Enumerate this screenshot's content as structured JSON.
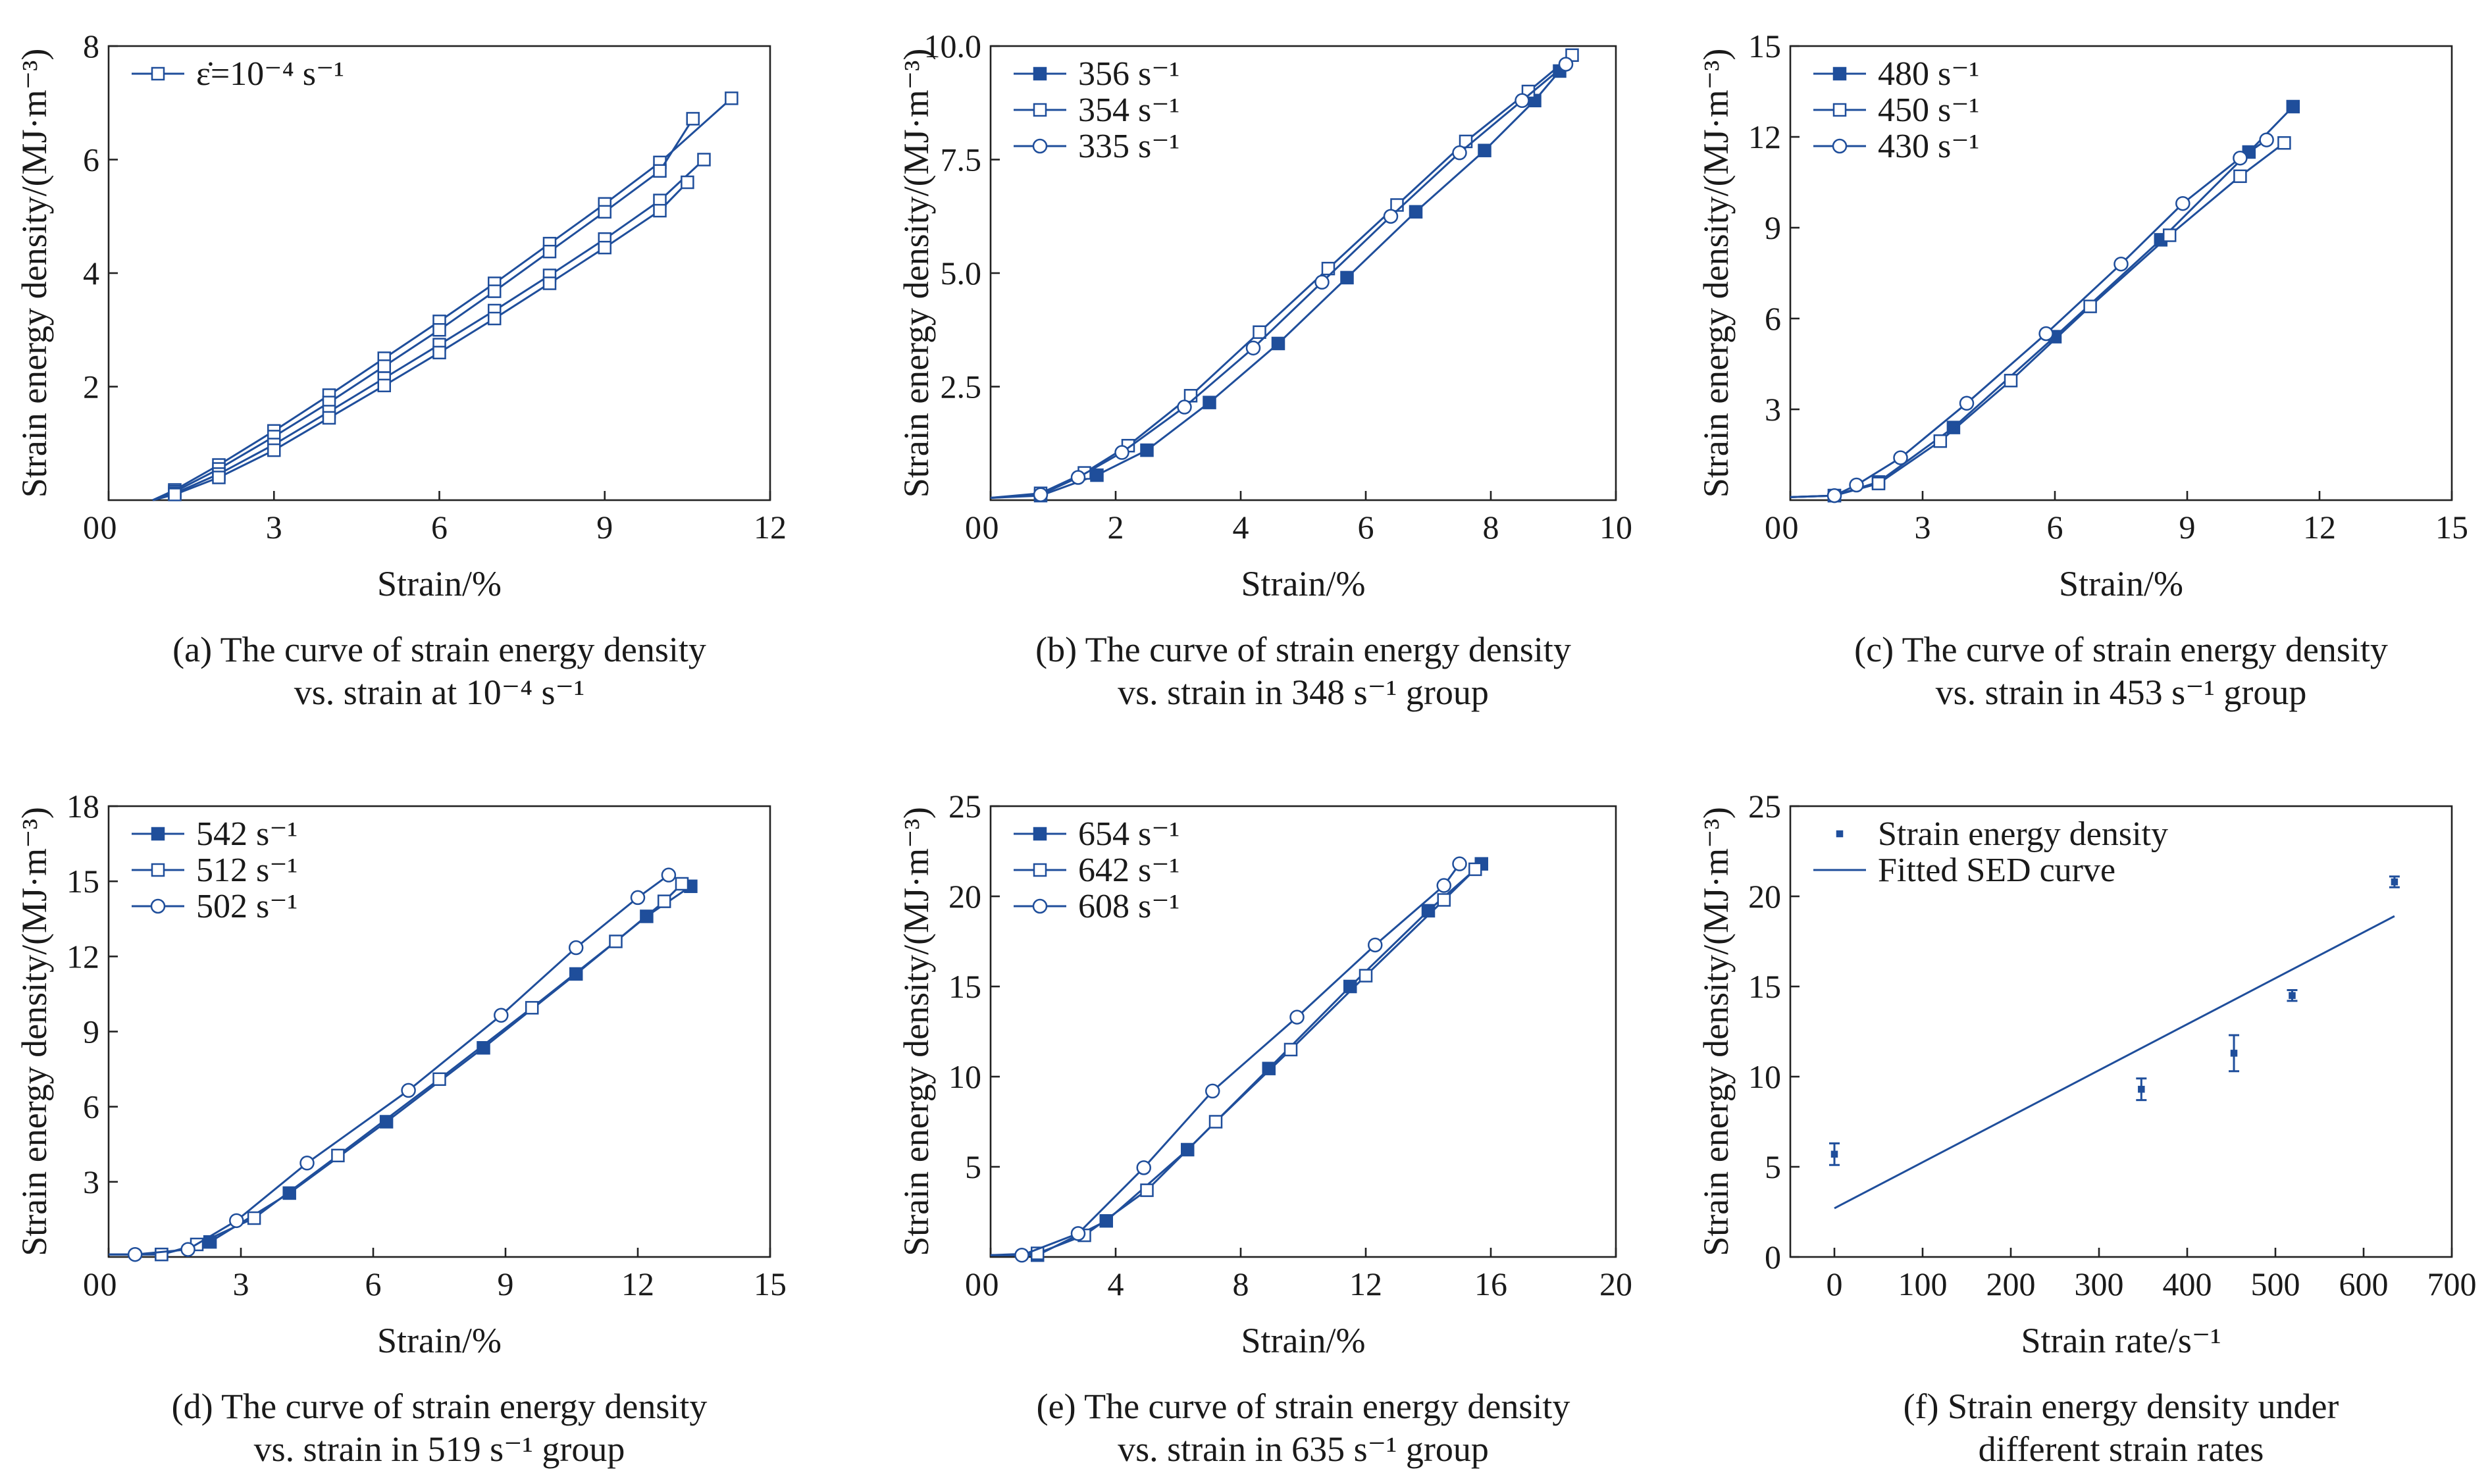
{
  "figure": {
    "background": "#ffffff",
    "series_color": "#1f4e9b"
  },
  "chart_data": [
    {
      "id": "a",
      "type": "line",
      "caption_line1": "(a) The curve of strain energy density",
      "caption_line2": "vs. strain at 10⁻⁴ s⁻¹",
      "xlabel": "Strain/%",
      "ylabel": "Strain energy density/(MJ·m⁻³)",
      "xlim": [
        0,
        12
      ],
      "ylim": [
        0,
        8
      ],
      "xticks": [
        0,
        3,
        6,
        9,
        12
      ],
      "yticks": [
        2,
        4,
        6,
        8
      ],
      "ytick_labels": [
        "2",
        "4",
        "6",
        "8"
      ],
      "legend_position": "top-left",
      "legend": [
        {
          "label": "ε̇=10⁻⁴ s⁻¹",
          "marker": "square"
        }
      ],
      "series": [
        {
          "marker": "square",
          "x": [
            0.8,
            1.2,
            2.0,
            3.0,
            4.0,
            5.0,
            6.0,
            7.0,
            8.0,
            9.0,
            10.0,
            11.3
          ],
          "y": [
            0.0,
            0.18,
            0.62,
            1.22,
            1.85,
            2.5,
            3.15,
            3.82,
            4.52,
            5.22,
            5.95,
            7.08
          ]
        },
        {
          "marker": "square",
          "x": [
            0.8,
            1.2,
            2.0,
            3.0,
            4.0,
            5.0,
            6.0,
            7.0,
            8.0,
            9.0,
            10.0,
            10.6
          ],
          "y": [
            0.0,
            0.15,
            0.55,
            1.12,
            1.72,
            2.36,
            3.0,
            3.68,
            4.38,
            5.08,
            5.8,
            6.72
          ]
        },
        {
          "marker": "square",
          "x": [
            0.8,
            1.2,
            2.0,
            3.0,
            4.0,
            5.0,
            6.0,
            7.0,
            8.0,
            9.0,
            10.0,
            10.8
          ],
          "y": [
            0.0,
            0.12,
            0.46,
            0.98,
            1.56,
            2.15,
            2.74,
            3.34,
            3.96,
            4.6,
            5.28,
            6.0
          ]
        },
        {
          "marker": "square",
          "x": [
            0.8,
            1.2,
            2.0,
            3.0,
            4.0,
            5.0,
            6.0,
            7.0,
            8.0,
            9.0,
            10.0,
            10.5
          ],
          "y": [
            0.0,
            0.1,
            0.4,
            0.88,
            1.45,
            2.02,
            2.6,
            3.2,
            3.82,
            4.45,
            5.1,
            5.6
          ]
        }
      ]
    },
    {
      "id": "b",
      "type": "line",
      "caption_line1": "(b) The curve of strain energy density",
      "caption_line2": "vs. strain in 348 s⁻¹ group",
      "xlabel": "Strain/%",
      "ylabel": "Strain energy density/(MJ·m⁻³)",
      "xlim": [
        0,
        10
      ],
      "ylim": [
        0,
        10
      ],
      "xticks": [
        0,
        2,
        4,
        6,
        8,
        10
      ],
      "yticks": [
        2.5,
        5.0,
        7.5,
        10.0
      ],
      "ytick_labels": [
        "2.5",
        "5.0",
        "7.5",
        "10.0"
      ],
      "legend_position": "top-left",
      "legend": [
        {
          "label": "356 s⁻¹",
          "marker": "filled"
        },
        {
          "label": "354 s⁻¹",
          "marker": "square"
        },
        {
          "label": "335 s⁻¹",
          "marker": "circle"
        }
      ],
      "series": [
        {
          "marker": "filled",
          "x": [
            0.0,
            0.8,
            1.7,
            2.5,
            3.5,
            4.6,
            5.7,
            6.8,
            7.9,
            8.7,
            9.1
          ],
          "y": [
            0.05,
            0.1,
            0.55,
            1.1,
            2.15,
            3.45,
            4.9,
            6.35,
            7.7,
            8.8,
            9.45
          ]
        },
        {
          "marker": "square",
          "x": [
            0.0,
            0.8,
            1.5,
            2.2,
            3.2,
            4.3,
            5.4,
            6.5,
            7.6,
            8.6,
            9.3
          ],
          "y": [
            0.05,
            0.15,
            0.6,
            1.2,
            2.3,
            3.7,
            5.1,
            6.5,
            7.9,
            9.0,
            9.8
          ]
        },
        {
          "marker": "circle",
          "x": [
            0.0,
            0.8,
            1.4,
            2.1,
            3.1,
            4.2,
            5.3,
            6.4,
            7.5,
            8.5,
            9.2
          ],
          "y": [
            0.05,
            0.12,
            0.5,
            1.05,
            2.05,
            3.35,
            4.8,
            6.25,
            7.65,
            8.8,
            9.6
          ]
        }
      ]
    },
    {
      "id": "c",
      "type": "line",
      "caption_line1": "(c) The curve of strain energy density",
      "caption_line2": "vs. strain in 453 s⁻¹ group",
      "xlabel": "Strain/%",
      "ylabel": "Strain energy density/(MJ·m⁻³)",
      "xlim": [
        0,
        15
      ],
      "ylim": [
        0,
        15
      ],
      "xticks": [
        0,
        3,
        6,
        9,
        12,
        15
      ],
      "yticks": [
        3,
        6,
        9,
        12,
        15
      ],
      "ytick_labels": [
        "3",
        "6",
        "9",
        "12",
        "15"
      ],
      "legend_position": "top-left",
      "legend": [
        {
          "label": "480 s⁻¹",
          "marker": "filled"
        },
        {
          "label": "450 s⁻¹",
          "marker": "square"
        },
        {
          "label": "430 s⁻¹",
          "marker": "circle"
        }
      ],
      "series": [
        {
          "marker": "filled",
          "x": [
            0.0,
            1.0,
            2.0,
            3.7,
            6.0,
            8.4,
            10.4,
            11.4
          ],
          "y": [
            0.1,
            0.15,
            0.6,
            2.4,
            5.4,
            8.6,
            11.5,
            13.0
          ]
        },
        {
          "marker": "square",
          "x": [
            0.0,
            1.0,
            2.0,
            3.4,
            5.0,
            6.8,
            8.6,
            10.2,
            11.2
          ],
          "y": [
            0.1,
            0.15,
            0.55,
            1.95,
            3.95,
            6.4,
            8.75,
            10.7,
            11.8
          ]
        },
        {
          "marker": "circle",
          "x": [
            0.0,
            1.0,
            1.5,
            2.5,
            4.0,
            5.8,
            7.5,
            8.9,
            10.2,
            10.8
          ],
          "y": [
            0.1,
            0.15,
            0.5,
            1.4,
            3.2,
            5.5,
            7.8,
            9.8,
            11.3,
            11.9
          ]
        }
      ]
    },
    {
      "id": "d",
      "type": "line",
      "caption_line1": "(d) The curve of strain energy density",
      "caption_line2": "vs. strain in 519 s⁻¹ group",
      "xlabel": "Strain/%",
      "ylabel": "Strain energy density/(MJ·m⁻³)",
      "xlim": [
        0,
        15
      ],
      "ylim": [
        0,
        18
      ],
      "xticks": [
        0,
        3,
        6,
        9,
        12,
        15
      ],
      "yticks": [
        3,
        6,
        9,
        12,
        15,
        18
      ],
      "ytick_labels": [
        "3",
        "6",
        "9",
        "12",
        "15",
        "18"
      ],
      "legend_position": "top-left",
      "legend": [
        {
          "label": "542 s⁻¹",
          "marker": "filled"
        },
        {
          "label": "512 s⁻¹",
          "marker": "square"
        },
        {
          "label": "502 s⁻¹",
          "marker": "circle"
        }
      ],
      "series": [
        {
          "marker": "filled",
          "x": [
            0.0,
            1.2,
            2.3,
            4.1,
            6.3,
            8.5,
            10.6,
            12.2,
            13.2
          ],
          "y": [
            0.1,
            0.1,
            0.6,
            2.55,
            5.4,
            8.35,
            11.3,
            13.6,
            14.8
          ]
        },
        {
          "marker": "square",
          "x": [
            0.0,
            1.2,
            2.0,
            3.3,
            5.2,
            7.5,
            9.6,
            11.5,
            12.6,
            13.0
          ],
          "y": [
            0.1,
            0.1,
            0.5,
            1.55,
            4.05,
            7.1,
            9.95,
            12.6,
            14.2,
            14.9
          ]
        },
        {
          "marker": "circle",
          "x": [
            0.0,
            0.6,
            1.8,
            2.9,
            4.5,
            6.8,
            8.9,
            10.6,
            12.0,
            12.7
          ],
          "y": [
            0.1,
            0.1,
            0.3,
            1.45,
            3.75,
            6.65,
            9.65,
            12.35,
            14.35,
            15.25
          ]
        }
      ]
    },
    {
      "id": "e",
      "type": "line",
      "caption_line1": "(e) The curve of strain energy density",
      "caption_line2": "vs. strain in 635 s⁻¹ group",
      "xlabel": "Strain/%",
      "ylabel": "Strain energy density/(MJ·m⁻³)",
      "xlim": [
        0,
        20
      ],
      "ylim": [
        0,
        25
      ],
      "xticks": [
        0,
        4,
        8,
        12,
        16,
        20
      ],
      "yticks": [
        5,
        10,
        15,
        20,
        25
      ],
      "ytick_labels": [
        "5",
        "10",
        "15",
        "20",
        "25"
      ],
      "legend_position": "top-left",
      "legend": [
        {
          "label": "654 s⁻¹",
          "marker": "filled"
        },
        {
          "label": "642 s⁻¹",
          "marker": "square"
        },
        {
          "label": "608 s⁻¹",
          "marker": "circle"
        }
      ],
      "series": [
        {
          "marker": "filled",
          "x": [
            0.0,
            1.5,
            3.7,
            6.3,
            8.9,
            11.5,
            14.0,
            15.7
          ],
          "y": [
            0.1,
            0.1,
            2.0,
            5.95,
            10.45,
            15.0,
            19.2,
            21.8
          ]
        },
        {
          "marker": "square",
          "x": [
            0.0,
            1.5,
            3.0,
            5.0,
            7.2,
            9.6,
            12.0,
            14.5,
            15.5
          ],
          "y": [
            0.1,
            0.2,
            1.2,
            3.7,
            7.5,
            11.5,
            15.6,
            19.8,
            21.5
          ]
        },
        {
          "marker": "circle",
          "x": [
            0.0,
            1.0,
            2.8,
            4.9,
            7.1,
            9.8,
            12.3,
            14.5,
            15.0
          ],
          "y": [
            0.1,
            0.1,
            1.3,
            4.95,
            9.2,
            13.3,
            17.3,
            20.6,
            21.8
          ]
        }
      ]
    },
    {
      "id": "f",
      "type": "scatter",
      "caption_line1": "(f) Strain energy density under",
      "caption_line2": "different strain rates",
      "xlabel": "Strain rate/s⁻¹",
      "ylabel": "Strain energy density/(MJ·m⁻³)",
      "xlim": [
        -50,
        700
      ],
      "ylim": [
        0,
        25
      ],
      "xticks": [
        0,
        100,
        200,
        300,
        400,
        500,
        600,
        700
      ],
      "yticks": [
        0,
        5,
        10,
        15,
        20,
        25
      ],
      "ytick_labels": [
        "0",
        "5",
        "10",
        "15",
        "20",
        "25"
      ],
      "legend_position": "top-left",
      "legend": [
        {
          "label": "Strain energy density",
          "marker": "point"
        },
        {
          "label": "Fitted SED curve",
          "marker": "line"
        }
      ],
      "points": {
        "x": [
          0.0001,
          348,
          453,
          519,
          635
        ],
        "y": [
          5.7,
          9.3,
          11.3,
          14.5,
          20.8
        ],
        "err": [
          0.6,
          0.6,
          1.0,
          0.3,
          0.3
        ]
      },
      "fit": {
        "x": [
          0,
          635
        ],
        "y": [
          2.7,
          18.9
        ]
      }
    }
  ]
}
